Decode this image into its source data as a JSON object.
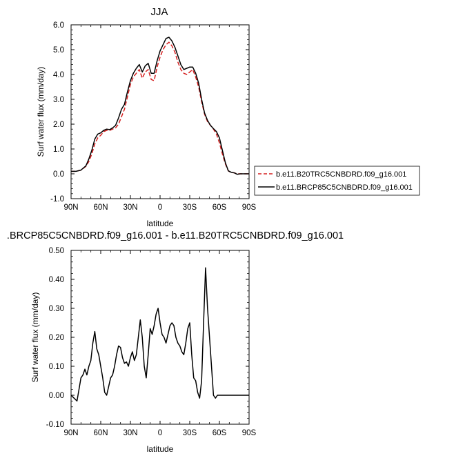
{
  "chart_data": [
    {
      "type": "line",
      "title": "JJA",
      "xlabel": "latitude",
      "ylabel": "Surf water flux (mm/day)",
      "xlim": [
        90,
        -90
      ],
      "ylim": [
        -1.0,
        6.0
      ],
      "xticks": [
        {
          "value": 90,
          "label": "90N"
        },
        {
          "value": 60,
          "label": "60N"
        },
        {
          "value": 30,
          "label": "30N"
        },
        {
          "value": 0,
          "label": "0"
        },
        {
          "value": -30,
          "label": "30S"
        },
        {
          "value": -60,
          "label": "60S"
        },
        {
          "value": -90,
          "label": "90S"
        }
      ],
      "yticks": [
        {
          "value": -1.0,
          "label": "-1.0"
        },
        {
          "value": 0.0,
          "label": "0.0"
        },
        {
          "value": 1.0,
          "label": "1.0"
        },
        {
          "value": 2.0,
          "label": "2.0"
        },
        {
          "value": 3.0,
          "label": "3.0"
        },
        {
          "value": 4.0,
          "label": "4.0"
        },
        {
          "value": 5.0,
          "label": "5.0"
        },
        {
          "value": 6.0,
          "label": "6.0"
        }
      ],
      "legend_position": "right",
      "series": [
        {
          "name": "b.e11.B20TRC5CNBDRD.f09_g16.001",
          "color": "#d62020",
          "dash": true,
          "x": [
            90,
            85,
            80,
            75,
            72,
            69,
            66,
            63,
            60,
            57,
            54,
            51,
            48,
            45,
            42,
            39,
            36,
            33,
            30,
            27,
            24,
            21,
            18,
            15,
            12,
            9,
            6,
            3,
            0,
            -3,
            -6,
            -9,
            -12,
            -15,
            -18,
            -21,
            -24,
            -27,
            -30,
            -33,
            -36,
            -39,
            -42,
            -45,
            -48,
            -51,
            -54,
            -57,
            -60,
            -63,
            -66,
            -69,
            -72,
            -75,
            -78,
            -81,
            -84,
            -87,
            -90
          ],
          "values": [
            0.1,
            0.1,
            0.15,
            0.3,
            0.5,
            0.8,
            1.2,
            1.45,
            1.55,
            1.7,
            1.75,
            1.75,
            1.8,
            1.85,
            2.0,
            2.3,
            2.6,
            3.1,
            3.6,
            3.9,
            4.05,
            4.2,
            3.85,
            4.1,
            4.2,
            3.8,
            3.75,
            4.3,
            4.7,
            5.0,
            5.2,
            5.3,
            5.15,
            4.9,
            4.5,
            4.2,
            4.05,
            4.0,
            4.1,
            4.2,
            3.9,
            3.5,
            2.9,
            2.4,
            2.1,
            1.95,
            1.8,
            1.6,
            1.25,
            0.8,
            0.4,
            0.12,
            0.05,
            0.04,
            0.0,
            0.0,
            0.0,
            0.0,
            0.0
          ]
        },
        {
          "name": "b.e11.BRCP85C5CNBDRD.f09_g16.001",
          "color": "#000000",
          "dash": false,
          "x": [
            90,
            85,
            80,
            75,
            72,
            69,
            66,
            63,
            60,
            57,
            54,
            51,
            48,
            45,
            42,
            39,
            36,
            33,
            30,
            27,
            24,
            21,
            18,
            15,
            12,
            9,
            6,
            3,
            0,
            -3,
            -6,
            -9,
            -12,
            -15,
            -18,
            -21,
            -24,
            -27,
            -30,
            -33,
            -36,
            -39,
            -42,
            -45,
            -48,
            -51,
            -54,
            -57,
            -60,
            -63,
            -66,
            -69,
            -72,
            -75,
            -78,
            -81,
            -84,
            -87,
            -90
          ],
          "values": [
            0.1,
            0.1,
            0.15,
            0.32,
            0.6,
            0.95,
            1.4,
            1.6,
            1.65,
            1.75,
            1.8,
            1.78,
            1.85,
            1.95,
            2.25,
            2.6,
            2.8,
            3.3,
            3.75,
            4.05,
            4.25,
            4.4,
            4.1,
            4.35,
            4.45,
            4.05,
            4.05,
            4.55,
            4.95,
            5.2,
            5.45,
            5.5,
            5.35,
            5.1,
            4.75,
            4.4,
            4.2,
            4.25,
            4.3,
            4.3,
            4.05,
            3.65,
            3.0,
            2.45,
            2.15,
            1.95,
            1.82,
            1.7,
            1.45,
            0.95,
            0.45,
            0.12,
            0.06,
            0.04,
            -0.02,
            0.0,
            0.0,
            0.0,
            0.0
          ]
        }
      ]
    },
    {
      "type": "line",
      "title": ".BRCP85C5CNBDRD.f09_g16.001 - b.e11.B20TRC5CNBDRD.f09_g16.001",
      "xlabel": "latitude",
      "ylabel": "Surf water flux (mm/day)",
      "xlim": [
        90,
        -90
      ],
      "ylim": [
        -0.1,
        0.5
      ],
      "xticks": [
        {
          "value": 90,
          "label": "90N"
        },
        {
          "value": 60,
          "label": "60N"
        },
        {
          "value": 30,
          "label": "30N"
        },
        {
          "value": 0,
          "label": "0"
        },
        {
          "value": -30,
          "label": "30S"
        },
        {
          "value": -60,
          "label": "60S"
        },
        {
          "value": -90,
          "label": "90S"
        }
      ],
      "yticks": [
        {
          "value": -0.1,
          "label": "-0.10"
        },
        {
          "value": 0.0,
          "label": "0.00"
        },
        {
          "value": 0.1,
          "label": "0.10"
        },
        {
          "value": 0.2,
          "label": "0.20"
        },
        {
          "value": 0.3,
          "label": "0.30"
        },
        {
          "value": 0.4,
          "label": "0.40"
        },
        {
          "value": 0.5,
          "label": "0.50"
        }
      ],
      "series": [
        {
          "color": "#000000",
          "dash": false,
          "x": [
            90,
            87,
            84,
            82,
            80,
            78,
            76,
            74,
            72,
            70,
            68,
            66,
            64,
            62,
            60,
            58,
            56,
            54,
            52,
            50,
            48,
            46,
            44,
            42,
            40,
            38,
            36,
            34,
            32,
            30,
            28,
            26,
            24,
            22,
            20,
            18,
            16,
            14,
            12,
            10,
            8,
            6,
            4,
            2,
            0,
            -2,
            -4,
            -6,
            -8,
            -10,
            -12,
            -14,
            -16,
            -18,
            -20,
            -22,
            -24,
            -26,
            -28,
            -30,
            -32,
            -34,
            -36,
            -38,
            -40,
            -42,
            -44,
            -46,
            -48,
            -50,
            -52,
            -54,
            -56,
            -58,
            -60,
            -62,
            -63,
            -64,
            -66,
            -68,
            -70,
            -72,
            -74,
            -76,
            -80,
            -84,
            -90
          ],
          "values": [
            0.0,
            -0.01,
            -0.02,
            0.02,
            0.06,
            0.07,
            0.09,
            0.07,
            0.1,
            0.12,
            0.18,
            0.22,
            0.16,
            0.14,
            0.1,
            0.06,
            0.01,
            0.0,
            0.03,
            0.06,
            0.07,
            0.1,
            0.14,
            0.17,
            0.165,
            0.13,
            0.11,
            0.115,
            0.1,
            0.13,
            0.15,
            0.12,
            0.14,
            0.2,
            0.26,
            0.2,
            0.1,
            0.06,
            0.14,
            0.23,
            0.21,
            0.24,
            0.28,
            0.3,
            0.25,
            0.21,
            0.2,
            0.18,
            0.21,
            0.24,
            0.25,
            0.24,
            0.2,
            0.18,
            0.17,
            0.15,
            0.14,
            0.18,
            0.23,
            0.25,
            0.14,
            0.06,
            0.05,
            0.01,
            -0.01,
            0.05,
            0.25,
            0.44,
            0.3,
            0.2,
            0.1,
            0.0,
            -0.01,
            0.0,
            0.0,
            0.0,
            0.0,
            0.0,
            0.0,
            0.0,
            0.0,
            0.0,
            0.0,
            0.0,
            0.0,
            0.0,
            0.0
          ]
        }
      ]
    }
  ]
}
